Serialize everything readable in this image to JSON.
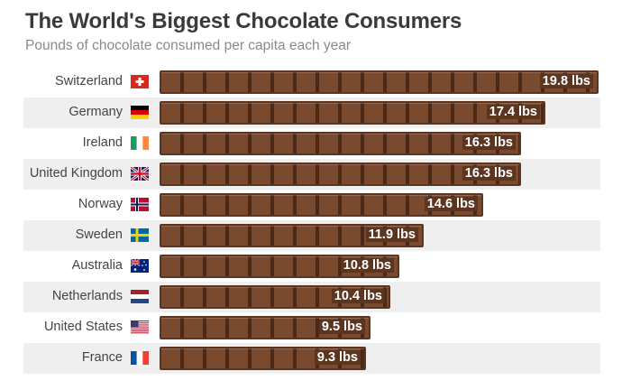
{
  "title": "The World's Biggest Chocolate Consumers",
  "subtitle": "Pounds of chocolate consumed per capita each year",
  "chart_data": {
    "type": "bar",
    "orientation": "horizontal",
    "title": "The World's Biggest Chocolate Consumers",
    "subtitle": "Pounds of chocolate consumed per capita each year",
    "xlabel": "",
    "ylabel": "",
    "categories": [
      "Switzerland",
      "Germany",
      "Ireland",
      "United Kingdom",
      "Norway",
      "Sweden",
      "Australia",
      "Netherlands",
      "United States",
      "France"
    ],
    "values": [
      19.8,
      17.4,
      16.3,
      16.3,
      14.6,
      11.9,
      10.8,
      10.4,
      9.5,
      9.3
    ],
    "value_labels": [
      "19.8 lbs",
      "17.4 lbs",
      "16.3 lbs",
      "16.3 lbs",
      "14.6 lbs",
      "11.9 lbs",
      "10.8 lbs",
      "10.4 lbs",
      "9.5 lbs",
      "9.3 lbs"
    ],
    "flags": [
      "switzerland-flag-icon",
      "germany-flag-icon",
      "ireland-flag-icon",
      "united-kingdom-flag-icon",
      "norway-flag-icon",
      "sweden-flag-icon",
      "australia-flag-icon",
      "netherlands-flag-icon",
      "united-states-flag-icon",
      "france-flag-icon"
    ],
    "xlim": [
      0,
      19.8
    ],
    "grid": false,
    "colors": {
      "bar": "#5b3520",
      "square": "#7a4a2e",
      "groove": "#4a2a17",
      "stripe": "#efefef"
    }
  }
}
